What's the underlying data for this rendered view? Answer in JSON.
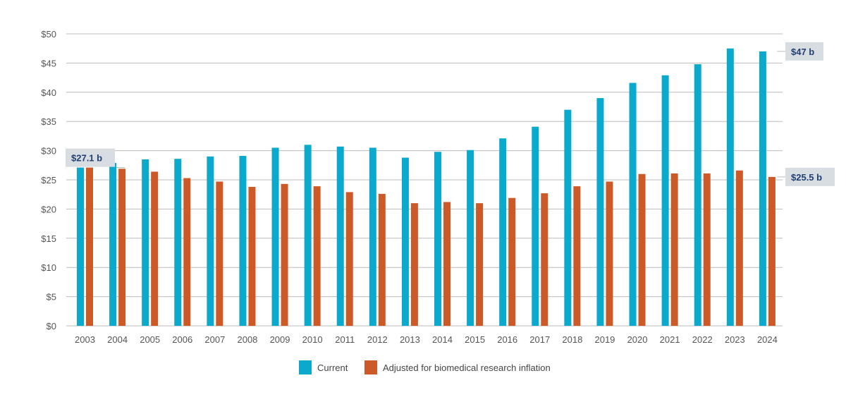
{
  "chart_data": {
    "type": "bar",
    "title": "",
    "xlabel": "",
    "ylabel": "",
    "ylim": [
      0,
      50
    ],
    "y_ticks": [
      0,
      5,
      10,
      15,
      20,
      25,
      30,
      35,
      40,
      45,
      50
    ],
    "y_tick_prefix": "$",
    "grid": true,
    "legend_position": "bottom-center",
    "categories": [
      "2003",
      "2004",
      "2005",
      "2006",
      "2007",
      "2008",
      "2009",
      "2010",
      "2011",
      "2012",
      "2013",
      "2014",
      "2015",
      "2016",
      "2017",
      "2018",
      "2019",
      "2020",
      "2021",
      "2022",
      "2023",
      "2024"
    ],
    "series": [
      {
        "name": "Current",
        "color": "#0ba9cc",
        "values": [
          27.1,
          27.9,
          28.5,
          28.6,
          29.0,
          29.1,
          30.5,
          31.0,
          30.7,
          30.5,
          28.8,
          29.8,
          30.1,
          32.1,
          34.1,
          37.0,
          39.0,
          41.6,
          42.9,
          44.8,
          47.5,
          47.0
        ]
      },
      {
        "name": "Adjusted for biomedical research inflation",
        "color": "#cc5a28",
        "values": [
          27.1,
          26.9,
          26.4,
          25.3,
          24.7,
          23.8,
          24.3,
          23.9,
          22.9,
          22.6,
          21.0,
          21.2,
          21.0,
          21.9,
          22.7,
          23.9,
          24.7,
          26.0,
          26.1,
          26.1,
          26.6,
          25.5
        ]
      }
    ],
    "annotations": [
      {
        "text": "$27.1 b",
        "series": 0,
        "category": "2003",
        "value": 27.1,
        "side": "left"
      },
      {
        "text": "$47 b",
        "series": 0,
        "category": "2024",
        "value": 47.0,
        "side": "right"
      },
      {
        "text": "$25.5 b",
        "series": 1,
        "category": "2024",
        "value": 25.5,
        "side": "right"
      }
    ],
    "colors": {
      "gridline": "#bbbbbb",
      "callout_bg": "#d7dde1",
      "callout_text": "#1f3f73",
      "tick_text": "#555555"
    }
  }
}
